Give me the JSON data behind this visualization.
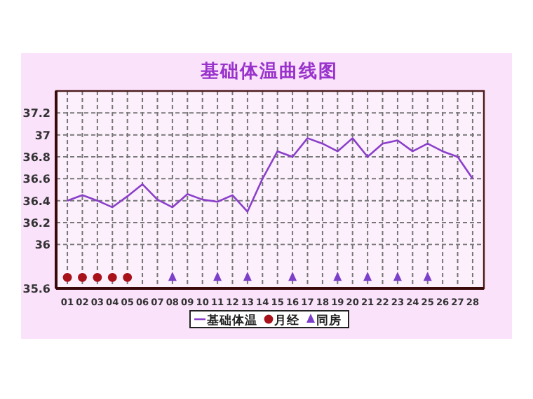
{
  "chart_data": {
    "type": "line",
    "title": "基础体温曲线图",
    "categories": [
      "01",
      "02",
      "03",
      "04",
      "05",
      "06",
      "07",
      "08",
      "09",
      "10",
      "11",
      "12",
      "13",
      "14",
      "15",
      "16",
      "17",
      "18",
      "19",
      "20",
      "21",
      "22",
      "23",
      "24",
      "25",
      "26",
      "27",
      "28"
    ],
    "series": [
      {
        "name": "基础体温",
        "color": "#8a3fc9",
        "marker": "none",
        "values": [
          36.4,
          36.45,
          36.4,
          36.34,
          36.44,
          36.55,
          36.41,
          36.34,
          36.46,
          36.41,
          36.39,
          36.45,
          36.3,
          36.6,
          36.85,
          36.8,
          36.97,
          36.92,
          36.85,
          36.97,
          36.8,
          36.92,
          36.95,
          36.85,
          36.92,
          36.85,
          36.8,
          36.6
        ]
      },
      {
        "name": "月经",
        "type": "scatter",
        "color": "#a8101a",
        "marker": "circle",
        "values": [
          35.7,
          35.7,
          35.7,
          35.7,
          35.7,
          null,
          null,
          null,
          null,
          null,
          null,
          null,
          null,
          null,
          null,
          null,
          null,
          null,
          null,
          null,
          null,
          null,
          null,
          null,
          null,
          null,
          null,
          null
        ]
      },
      {
        "name": "同房",
        "type": "scatter",
        "color": "#7b3fc9",
        "marker": "triangle",
        "values": [
          null,
          null,
          null,
          null,
          null,
          null,
          null,
          35.7,
          null,
          null,
          35.7,
          null,
          35.7,
          null,
          null,
          35.7,
          null,
          null,
          35.7,
          null,
          35.7,
          null,
          35.7,
          null,
          35.7,
          null,
          null,
          null
        ]
      }
    ],
    "ylim": [
      35.6,
      37.4
    ],
    "yticks": [
      35.6,
      36,
      36.2,
      36.4,
      36.6,
      36.8,
      37,
      37.2
    ],
    "grid": true,
    "legend": "bottom"
  }
}
